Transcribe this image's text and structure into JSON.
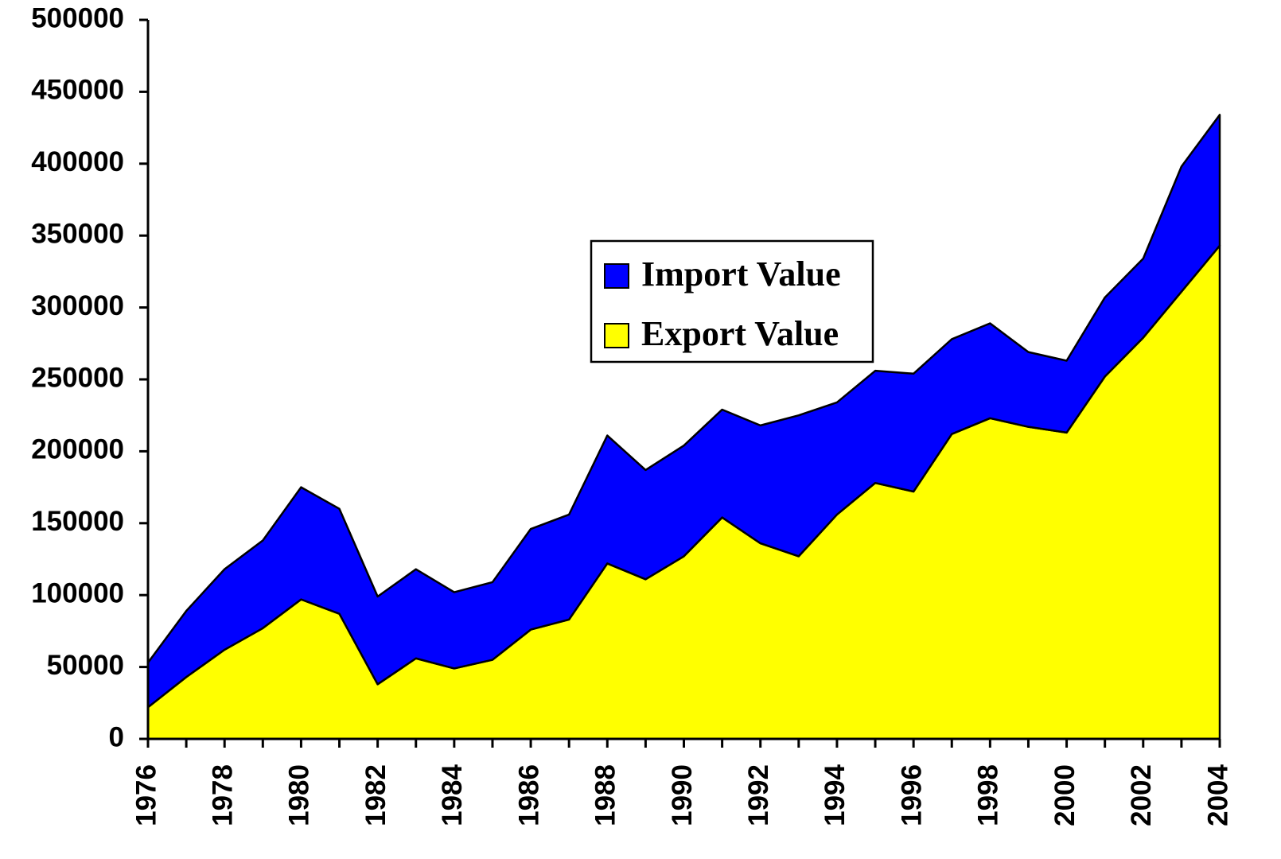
{
  "chart_data": {
    "type": "stacked_area",
    "categories": [
      "1976",
      null,
      "1978",
      null,
      "1980",
      null,
      "1982",
      null,
      "1984",
      null,
      "1986",
      null,
      "1988",
      null,
      "1990",
      null,
      "1992",
      null,
      "1994",
      null,
      "1996",
      null,
      "1998",
      null,
      "2000",
      null,
      "2002",
      null,
      "2004"
    ],
    "series": [
      {
        "name": "Export Value",
        "color": "#ffff00",
        "values": [
          22000,
          43000,
          62000,
          77000,
          97000,
          87000,
          38000,
          56000,
          49000,
          55000,
          76000,
          83000,
          122000,
          111000,
          127000,
          154000,
          136000,
          127000,
          156000,
          178000,
          172000,
          212000,
          223000,
          217000,
          213000,
          252000,
          279000,
          311000,
          343000
        ]
      },
      {
        "name": "Import Value",
        "color": "#0000ff",
        "values": [
          31000,
          46000,
          56000,
          61000,
          78000,
          73000,
          61000,
          62000,
          53000,
          54000,
          70000,
          73000,
          89000,
          76000,
          77000,
          75000,
          82000,
          98000,
          78000,
          78000,
          82000,
          66000,
          66000,
          52000,
          50000,
          55000,
          55000,
          87000,
          91000
        ]
      }
    ],
    "ylim": [
      0,
      500000
    ],
    "yticks": [
      0,
      50000,
      100000,
      150000,
      200000,
      250000,
      300000,
      350000,
      400000,
      450000,
      500000
    ],
    "legend": "center"
  }
}
